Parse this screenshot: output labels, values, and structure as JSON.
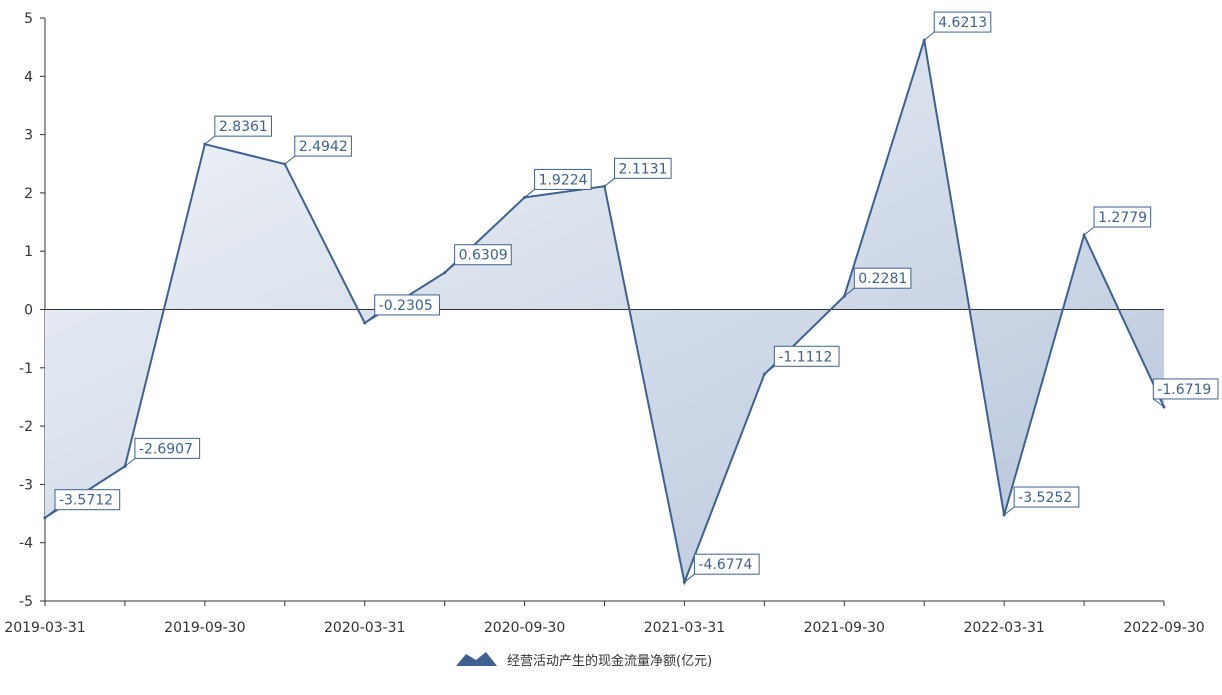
{
  "chart_data": {
    "type": "area",
    "x": [
      "2019-03-31",
      "2019-06-30",
      "2019-09-30",
      "2019-12-31",
      "2020-03-31",
      "2020-06-30",
      "2020-09-30",
      "2020-12-31",
      "2021-03-31",
      "2021-06-30",
      "2021-09-30",
      "2021-12-31",
      "2022-03-31",
      "2022-06-30",
      "2022-09-30"
    ],
    "x_tick_labels": [
      "2019-03-31",
      "2019-09-30",
      "2020-03-31",
      "2020-09-30",
      "2021-03-31",
      "2021-09-30",
      "2022-03-31",
      "2022-09-30"
    ],
    "series": [
      {
        "name": "经营活动产生的现金流量净额(亿元)",
        "values": [
          -3.5712,
          -2.6907,
          2.8361,
          2.4942,
          -0.2305,
          0.6309,
          1.9224,
          2.1131,
          -4.6774,
          -1.1112,
          0.2281,
          4.6213,
          -3.5252,
          1.2779,
          -1.6719
        ],
        "labels": [
          "-3.5712",
          "-2.6907",
          "2.8361",
          "2.4942",
          "-0.2305",
          "0.6309",
          "1.9224",
          "2.1131",
          "-4.6774",
          "-1.1112",
          "0.2281",
          "4.6213",
          "-3.5252",
          "1.2779",
          "-1.6719"
        ]
      }
    ],
    "ylim": [
      -5,
      5
    ],
    "y_tick_labels": [
      "5",
      "4",
      "3",
      "2",
      "1",
      "0",
      "-1",
      "-2",
      "-3",
      "-4",
      "-5"
    ],
    "grid": false,
    "legend_position": "bottom-center",
    "colors": {
      "line": "#3e6190",
      "area_start": "#f4f6fa",
      "area_end": "#b5c4da",
      "axis": "#333333"
    }
  }
}
